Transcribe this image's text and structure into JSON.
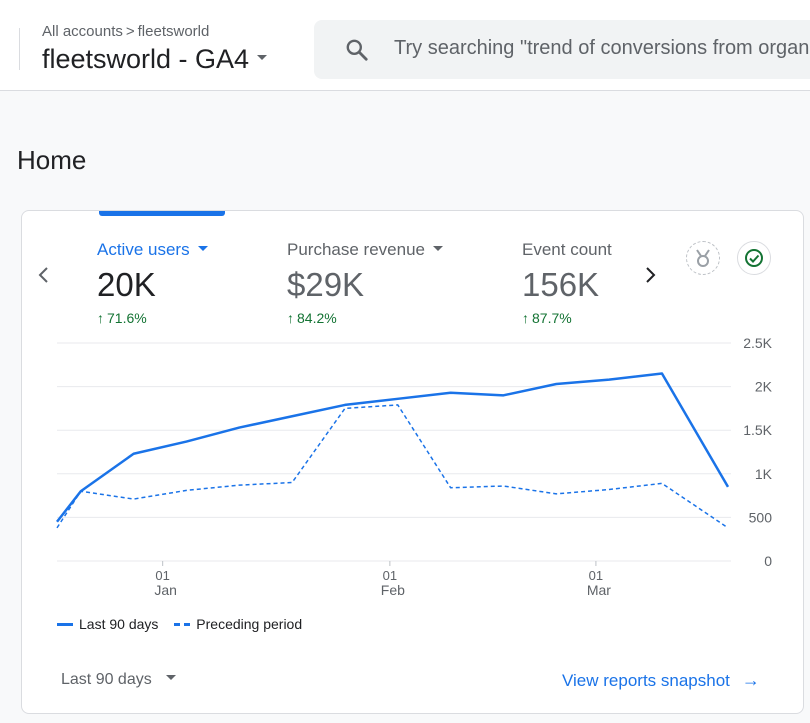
{
  "header": {
    "breadcrumb": {
      "parent": "All accounts",
      "separator": ">",
      "current": "fleetsworld"
    },
    "property_name": "fleetsworld - GA4",
    "search_placeholder": "Try searching \"trend of conversions from organic\""
  },
  "page": {
    "title": "Home"
  },
  "card": {
    "metrics": [
      {
        "label": "Active users",
        "value": "20K",
        "change": "71.6%",
        "active": true
      },
      {
        "label": "Purchase revenue",
        "value": "$29K",
        "change": "84.2%",
        "active": false
      },
      {
        "label": "Event count",
        "value": "156K",
        "change": "87.7%",
        "active": false
      }
    ],
    "icons": {
      "prev": "chevron-left-icon",
      "next": "chevron-right-icon",
      "insights": "insights-medal-icon",
      "status": "check-circle-icon"
    },
    "legend": {
      "current": "Last 90 days",
      "previous": "Preceding period"
    },
    "date_range": "Last 90 days",
    "snapshot_link": "View reports snapshot"
  },
  "chart_data": {
    "type": "line",
    "xlabel": "",
    "ylabel": "",
    "ylim": [
      0,
      2500
    ],
    "y_ticks": [
      "0",
      "500",
      "1K",
      "1.5K",
      "2K",
      "2.5K"
    ],
    "y_tick_values": [
      0,
      500,
      1000,
      1500,
      2000,
      2500
    ],
    "x_tick_labels": [
      {
        "day": "01",
        "month": "Jan",
        "index": 2
      },
      {
        "day": "01",
        "month": "Feb",
        "index": 6.3
      },
      {
        "day": "01",
        "month": "Mar",
        "index": 10.2
      }
    ],
    "x_range": [
      0,
      12.7
    ],
    "grid": true,
    "legend_position": "bottom-left",
    "series": [
      {
        "name": "Last 90 days",
        "style": "solid",
        "color": "#1a73e8",
        "x": [
          0,
          0.45,
          1.45,
          2.45,
          3.45,
          4.45,
          5.45,
          6.45,
          7.45,
          8.45,
          9.45,
          10.45,
          11.45,
          12.7
        ],
        "values": [
          450,
          800,
          1230,
          1370,
          1530,
          1660,
          1790,
          1860,
          1930,
          1900,
          2030,
          2080,
          2150,
          850
        ]
      },
      {
        "name": "Preceding period",
        "style": "dashed",
        "color": "#1a73e8",
        "x": [
          0,
          0.45,
          1.45,
          2.45,
          3.45,
          4.45,
          5.45,
          6.45,
          7.45,
          8.45,
          9.45,
          10.45,
          11.45,
          12.7
        ],
        "values": [
          380,
          800,
          710,
          810,
          870,
          900,
          1750,
          1790,
          840,
          860,
          770,
          820,
          890,
          380
        ]
      }
    ]
  }
}
